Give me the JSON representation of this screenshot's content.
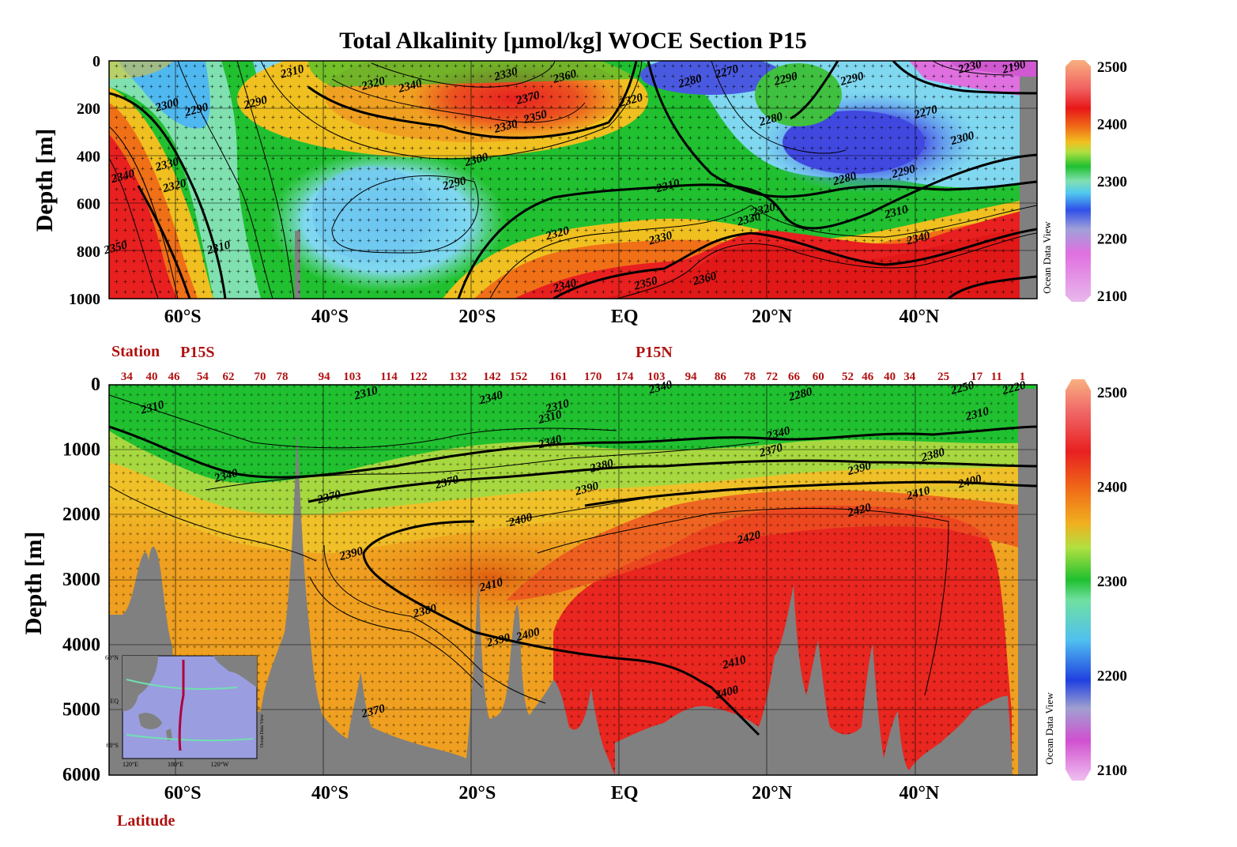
{
  "title": "Total Alkalinity [µmol/kg]  WOCE Section P15",
  "credit": "Ocean Data View",
  "chart_data": [
    {
      "type": "heatmap",
      "name": "upper",
      "ylabel": "Depth [m]",
      "ylim": [
        0,
        1000
      ],
      "yticks": [
        "0",
        "200",
        "400",
        "600",
        "800",
        "1000"
      ],
      "xlim": [
        -70,
        56
      ],
      "xticks": [
        {
          "lat": -60,
          "label": "60°S"
        },
        {
          "lat": -40,
          "label": "40°S"
        },
        {
          "lat": -20,
          "label": "20°S"
        },
        {
          "lat": 0,
          "label": "EQ"
        },
        {
          "lat": 20,
          "label": "20°N"
        },
        {
          "lat": 40,
          "label": "40°N"
        }
      ],
      "colorbar": {
        "ticks": [
          "2500",
          "2400",
          "2300",
          "2200",
          "2100"
        ],
        "range": [
          2100,
          2500
        ]
      },
      "contour_labels": [
        {
          "t": "2310",
          "lat": -45,
          "d": 60
        },
        {
          "t": "2320",
          "lat": -34,
          "d": 110
        },
        {
          "t": "2340",
          "lat": -29,
          "d": 120
        },
        {
          "t": "2330",
          "lat": -16,
          "d": 70
        },
        {
          "t": "2360",
          "lat": -8,
          "d": 80
        },
        {
          "t": "2370",
          "lat": -13,
          "d": 170
        },
        {
          "t": "2350",
          "lat": -12,
          "d": 250
        },
        {
          "t": "2330",
          "lat": -16,
          "d": 290
        },
        {
          "t": "2320",
          "lat": 1,
          "d": 180
        },
        {
          "t": "2300",
          "lat": -62,
          "d": 200
        },
        {
          "t": "2290",
          "lat": -58,
          "d": 220
        },
        {
          "t": "2290",
          "lat": -50,
          "d": 190
        },
        {
          "t": "2300",
          "lat": -20,
          "d": 430
        },
        {
          "t": "2290",
          "lat": -23,
          "d": 530
        },
        {
          "t": "2310",
          "lat": 6,
          "d": 540
        },
        {
          "t": "2320",
          "lat": -9,
          "d": 740
        },
        {
          "t": "2330",
          "lat": 5,
          "d": 760
        },
        {
          "t": "2320",
          "lat": 19,
          "d": 640
        },
        {
          "t": "2330",
          "lat": 17,
          "d": 680
        },
        {
          "t": "2340",
          "lat": -8,
          "d": 960
        },
        {
          "t": "2350",
          "lat": 3,
          "d": 950
        },
        {
          "t": "2360",
          "lat": 11,
          "d": 930
        },
        {
          "t": "2280",
          "lat": 9,
          "d": 100
        },
        {
          "t": "2270",
          "lat": 14,
          "d": 60
        },
        {
          "t": "2280",
          "lat": 20,
          "d": 260
        },
        {
          "t": "2290",
          "lat": 22,
          "d": 90
        },
        {
          "t": "2290",
          "lat": 31,
          "d": 90
        },
        {
          "t": "2270",
          "lat": 41,
          "d": 230
        },
        {
          "t": "2300",
          "lat": 46,
          "d": 340
        },
        {
          "t": "2280",
          "lat": 30,
          "d": 510
        },
        {
          "t": "2290",
          "lat": 38,
          "d": 480
        },
        {
          "t": "2310",
          "lat": 37,
          "d": 650
        },
        {
          "t": "2340",
          "lat": 40,
          "d": 760
        },
        {
          "t": "2230",
          "lat": 47,
          "d": 40
        },
        {
          "t": "2190",
          "lat": 53,
          "d": 40
        },
        {
          "t": "2340",
          "lat": -68,
          "d": 500
        },
        {
          "t": "2330",
          "lat": -62,
          "d": 450
        },
        {
          "t": "2320",
          "lat": -61,
          "d": 540
        },
        {
          "t": "2310",
          "lat": -55,
          "d": 800
        },
        {
          "t": "2350",
          "lat": -69,
          "d": 800
        }
      ]
    },
    {
      "type": "heatmap",
      "name": "lower",
      "ylabel": "Depth [m]",
      "ylim": [
        0,
        6000
      ],
      "yticks": [
        "0",
        "1000",
        "2000",
        "3000",
        "4000",
        "5000",
        "6000"
      ],
      "xlim": [
        -70,
        56
      ],
      "xlabel": "Latitude",
      "xticks": [
        {
          "lat": -60,
          "label": "60°S"
        },
        {
          "lat": -40,
          "label": "40°S"
        },
        {
          "lat": -20,
          "label": "20°S"
        },
        {
          "lat": 0,
          "label": "EQ"
        },
        {
          "lat": 20,
          "label": "20°N"
        },
        {
          "lat": 40,
          "label": "40°N"
        }
      ],
      "station_label": "Station",
      "sections": [
        {
          "label": "P15S",
          "lat": -58
        },
        {
          "label": "P15N",
          "lat": 4
        }
      ],
      "stations": [
        {
          "n": "34",
          "lat": -67.6
        },
        {
          "n": "40",
          "lat": -64.2
        },
        {
          "n": "46",
          "lat": -61.2
        },
        {
          "n": "54",
          "lat": -57.3
        },
        {
          "n": "62",
          "lat": -53.8
        },
        {
          "n": "70",
          "lat": -49.5
        },
        {
          "n": "78",
          "lat": -46.5
        },
        {
          "n": "94",
          "lat": -40.8
        },
        {
          "n": "103",
          "lat": -37.0
        },
        {
          "n": "114",
          "lat": -32.0
        },
        {
          "n": "122",
          "lat": -28.0
        },
        {
          "n": "132",
          "lat": -22.6
        },
        {
          "n": "142",
          "lat": -18.0
        },
        {
          "n": "152",
          "lat": -14.4
        },
        {
          "n": "161",
          "lat": -9.0
        },
        {
          "n": "170",
          "lat": -4.3
        },
        {
          "n": "174",
          "lat": 0.0
        },
        {
          "n": "103",
          "lat": 4.3
        },
        {
          "n": "94",
          "lat": 9.0
        },
        {
          "n": "86",
          "lat": 13.0
        },
        {
          "n": "78",
          "lat": 17.0
        },
        {
          "n": "72",
          "lat": 20.0
        },
        {
          "n": "66",
          "lat": 23.0
        },
        {
          "n": "60",
          "lat": 26.3
        },
        {
          "n": "52",
          "lat": 30.3
        },
        {
          "n": "46",
          "lat": 33.0
        },
        {
          "n": "40",
          "lat": 36.0
        },
        {
          "n": "34",
          "lat": 38.7
        },
        {
          "n": "25",
          "lat": 43.3
        },
        {
          "n": "17",
          "lat": 47.8
        },
        {
          "n": "11",
          "lat": 50.5
        },
        {
          "n": "1",
          "lat": 54.0
        }
      ],
      "colorbar": {
        "ticks": [
          "2500",
          "2400",
          "2300",
          "2200",
          "2100"
        ],
        "range": [
          2100,
          2500
        ]
      },
      "contour_labels": [
        {
          "t": "2310",
          "lat": -64,
          "d": 400
        },
        {
          "t": "2340",
          "lat": -54,
          "d": 1450
        },
        {
          "t": "2370",
          "lat": -40,
          "d": 1780
        },
        {
          "t": "2310",
          "lat": -35,
          "d": 180
        },
        {
          "t": "2340",
          "lat": -18,
          "d": 250
        },
        {
          "t": "2310",
          "lat": -9,
          "d": 380
        },
        {
          "t": "2310",
          "lat": -10,
          "d": 550
        },
        {
          "t": "2340",
          "lat": -10,
          "d": 930
        },
        {
          "t": "2370",
          "lat": -24,
          "d": 1550
        },
        {
          "t": "2380",
          "lat": -3,
          "d": 1300
        },
        {
          "t": "2390",
          "lat": -5,
          "d": 1650
        },
        {
          "t": "2400",
          "lat": -14,
          "d": 2130
        },
        {
          "t": "2390",
          "lat": -37,
          "d": 2650
        },
        {
          "t": "2410",
          "lat": -18,
          "d": 3130
        },
        {
          "t": "2380",
          "lat": -27,
          "d": 3530
        },
        {
          "t": "2390",
          "lat": -17,
          "d": 3980
        },
        {
          "t": "2400",
          "lat": -13,
          "d": 3890
        },
        {
          "t": "2410",
          "lat": 15,
          "d": 4320
        },
        {
          "t": "2400",
          "lat": 14,
          "d": 4780
        },
        {
          "t": "2420",
          "lat": 17,
          "d": 2400
        },
        {
          "t": "2420",
          "lat": 32,
          "d": 1980
        },
        {
          "t": "2410",
          "lat": 40,
          "d": 1720
        },
        {
          "t": "2400",
          "lat": 47,
          "d": 1540
        },
        {
          "t": "2390",
          "lat": 32,
          "d": 1340
        },
        {
          "t": "2380",
          "lat": 42,
          "d": 1130
        },
        {
          "t": "2370",
          "lat": 20,
          "d": 1060
        },
        {
          "t": "2340",
          "lat": 21,
          "d": 800
        },
        {
          "t": "2280",
          "lat": 24,
          "d": 200
        },
        {
          "t": "2310",
          "lat": 48,
          "d": 500
        },
        {
          "t": "2250",
          "lat": 46,
          "d": 100
        },
        {
          "t": "2220",
          "lat": 53,
          "d": 100
        },
        {
          "t": "2340",
          "lat": 5,
          "d": 90
        },
        {
          "t": "2370",
          "lat": -34,
          "d": 5070
        }
      ]
    }
  ],
  "inset_map": {
    "lat_labels": [
      "60°N",
      "EQ",
      "60°S"
    ],
    "lon_labels": [
      "120°E",
      "180°E",
      "120°W"
    ],
    "credit": "Ocean Data View"
  }
}
